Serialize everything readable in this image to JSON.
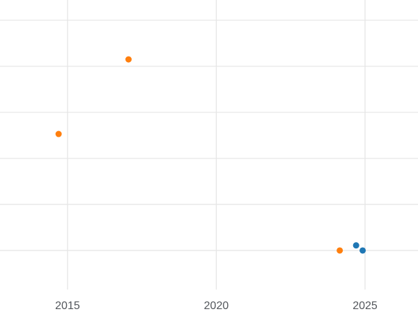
{
  "chart_data": {
    "type": "scatter",
    "title": "",
    "xlabel": "",
    "ylabel": "",
    "x_tick_labels": [
      "2015",
      "2020",
      "2025"
    ],
    "x_tick_values": [
      2015,
      2020,
      2025
    ],
    "xlim": [
      2012.73,
      2026.78
    ],
    "ylim": [
      -1.38,
      5.44
    ],
    "y_gridline_values": [
      0,
      1,
      2,
      3,
      4,
      5
    ],
    "grid": true,
    "legend": "none",
    "background_color": "#ffffff",
    "gridline_color": "#e6e6e6",
    "tick_label_color": "#53575c",
    "series": [
      {
        "name": "orange-series",
        "color": "#ff7f0e",
        "marker_radius": 4.5,
        "points": [
          {
            "x": 2014.7,
            "y": 2.53
          },
          {
            "x": 2017.05,
            "y": 4.15
          },
          {
            "x": 2024.15,
            "y": 0.0
          }
        ]
      },
      {
        "name": "blue-series",
        "color": "#1f77b4",
        "marker_radius": 4.5,
        "points": [
          {
            "x": 2024.7,
            "y": 0.11
          },
          {
            "x": 2024.92,
            "y": 0.0
          }
        ]
      }
    ]
  }
}
